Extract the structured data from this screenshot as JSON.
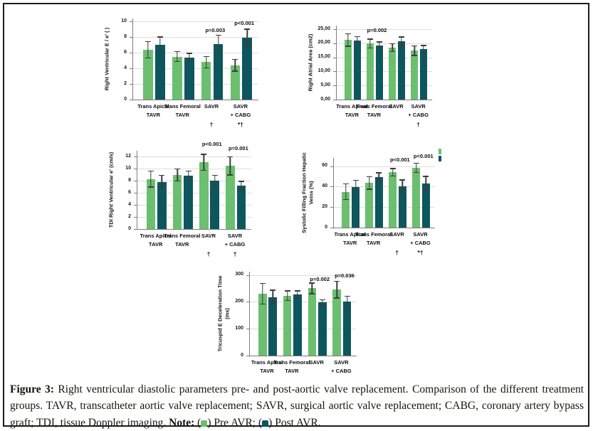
{
  "colors": {
    "pre": "#6bbf6f",
    "post": "#0d565e",
    "error_bar": "#3c3c3c",
    "grid": "#dddddd",
    "axis": "#7d7d7d",
    "frame": "#1c1c1c"
  },
  "caption": {
    "figure_label": "Figure 3:",
    "body": "Right ventricular diastolic parameters pre- and post-aortic valve replacement. Comparison of the different treatment groups. TAVR, transcatheter aortic valve replacement; SAVR, surgical aortic valve replacement; CABG, coronary artery bypass graft; TDI, tissue Doppler imaging.",
    "note_label": "Note:",
    "legend": [
      {
        "label": "Pre AVR;",
        "color": "#6bbf6f"
      },
      {
        "label": "Post AVR.",
        "color": "#0d565e"
      }
    ]
  },
  "chart_data": [
    {
      "id": "right-ventricular-e-over-e-prime",
      "type": "bar",
      "title": "",
      "ylabel_lines": [
        "Right Ventricular E / e′ ( )"
      ],
      "ylabel": "Right Ventricular E / e′ ( )",
      "xlabel": "",
      "ylim": [
        0,
        10
      ],
      "grid": true,
      "yticks": [
        {
          "v": 0,
          "label": "0"
        },
        {
          "v": 2,
          "label": "2"
        },
        {
          "v": 4,
          "label": "4"
        },
        {
          "v": 6,
          "label": "6"
        },
        {
          "v": 8,
          "label": "8"
        },
        {
          "v": 10,
          "label": "10"
        }
      ],
      "categories": [
        {
          "line1": "Trans Apical",
          "line2": "TAVR",
          "note": ""
        },
        {
          "line1": "Trans Femoral",
          "line2": "TAVR",
          "note": ""
        },
        {
          "line1": "SAVR",
          "line2": "",
          "note": "†"
        },
        {
          "line1": "SAVR",
          "line2": "+ CABG",
          "note": "*†"
        }
      ],
      "series": [
        {
          "name": "Pre AVR",
          "values": [
            6.4,
            5.5,
            4.8,
            4.4
          ],
          "errors": [
            1.1,
            0.7,
            0.8,
            0.8
          ]
        },
        {
          "name": "Post AVR",
          "values": [
            7.0,
            5.4,
            7.1,
            7.9
          ],
          "errors": [
            1.1,
            0.6,
            1.2,
            1.2
          ]
        }
      ],
      "annotations": [
        {
          "group": 2,
          "text": "p=0.003",
          "dy": 12
        },
        {
          "group": 3,
          "text": "p<0.001",
          "dy": 2
        }
      ]
    },
    {
      "id": "right-atrial-area",
      "type": "bar",
      "title": "",
      "ylabel_lines": [
        "Right Atrial Area (cm2)"
      ],
      "ylabel": "Right Atrial Area (cm2)",
      "xlabel": "",
      "ylim": [
        0,
        25
      ],
      "grid": true,
      "yticks": [
        {
          "v": 0,
          "label": "0,00"
        },
        {
          "v": 5,
          "label": "5,00"
        },
        {
          "v": 10,
          "label": "10,00"
        },
        {
          "v": 15,
          "label": "15,00"
        },
        {
          "v": 20,
          "label": "20,00"
        },
        {
          "v": 25,
          "label": "25,00"
        }
      ],
      "categories": [
        {
          "line1": "Trans Apical",
          "line2": "TAVR",
          "note": ""
        },
        {
          "line1": "Trans Femoral",
          "line2": "TAVR",
          "note": ""
        },
        {
          "line1": "SAVR",
          "line2": "",
          "note": ""
        },
        {
          "line1": "SAVR",
          "line2": "+ CABG",
          "note": "†"
        }
      ],
      "series": [
        {
          "name": "Pre AVR",
          "values": [
            21.2,
            19.9,
            18.5,
            17.4
          ],
          "errors": [
            2.4,
            1.8,
            1.6,
            1.9
          ]
        },
        {
          "name": "Post AVR",
          "values": [
            21.0,
            19.2,
            20.7,
            17.9
          ],
          "errors": [
            1.6,
            1.5,
            1.7,
            1.5
          ]
        }
      ],
      "annotations": [
        {
          "group": 1,
          "text": "p=0.002",
          "dy": 2
        }
      ]
    },
    {
      "id": "tdi-right-ventricular-e-prime",
      "type": "bar",
      "title": "",
      "ylabel_lines": [
        "TDI Right Ventricular e′ (cm/s)"
      ],
      "ylabel": "TDI Right Ventricular e′ (cm/s)",
      "xlabel": "",
      "ylim": [
        0,
        12
      ],
      "grid": true,
      "yticks": [
        {
          "v": 0,
          "label": "0"
        },
        {
          "v": 2,
          "label": "2"
        },
        {
          "v": 4,
          "label": "4"
        },
        {
          "v": 6,
          "label": "6"
        },
        {
          "v": 8,
          "label": "8"
        },
        {
          "v": 10,
          "label": "10"
        },
        {
          "v": 12,
          "label": "12"
        }
      ],
      "categories": [
        {
          "line1": "Trans Apical",
          "line2": "TAVR",
          "note": ""
        },
        {
          "line1": "Trans Femoral",
          "line2": "TAVR",
          "note": ""
        },
        {
          "line1": "SAVR",
          "line2": "",
          "note": "†"
        },
        {
          "line1": "SAVR",
          "line2": "+ CABG",
          "note": "†"
        }
      ],
      "series": [
        {
          "name": "Pre AVR",
          "values": [
            8.3,
            9.0,
            11.1,
            10.5
          ],
          "errors": [
            1.4,
            1.1,
            1.4,
            1.6
          ]
        },
        {
          "name": "Post AVR",
          "values": [
            7.8,
            8.9,
            8.0,
            7.2
          ],
          "errors": [
            1.2,
            0.8,
            1.0,
            0.8
          ]
        }
      ],
      "annotations": [
        {
          "group": 2,
          "text": "p<0.001",
          "dy": -14
        },
        {
          "group": 3,
          "text": "p=0.001",
          "dy": -8
        }
      ]
    },
    {
      "id": "systolic-filling-fraction-hepatic-veins",
      "type": "bar",
      "title": "",
      "ylabel_lines": [
        "Systolic Filling Fraction Hepatic",
        "Veins (%)"
      ],
      "ylabel": "Systolic Filling Fraction Hepatic Veins (%)",
      "xlabel": "",
      "ylim": [
        0,
        60
      ],
      "grid": true,
      "yticks": [
        {
          "v": 0,
          "label": "0"
        },
        {
          "v": 20,
          "label": "20"
        },
        {
          "v": 40,
          "label": "40"
        },
        {
          "v": 60,
          "label": "60"
        }
      ],
      "categories": [
        {
          "line1": "Trans Apical",
          "line2": "TAVR",
          "note": ""
        },
        {
          "line1": "Trans Femoral",
          "line2": "TAVR",
          "note": ""
        },
        {
          "line1": "SAVR",
          "line2": "",
          "note": "†"
        },
        {
          "line1": "SAVR",
          "line2": "+ CABG",
          "note": "*†"
        }
      ],
      "series": [
        {
          "name": "Pre AVR",
          "values": [
            35.0,
            43.5,
            54.0,
            58.5
          ],
          "errors": [
            8.0,
            6.5,
            4.0,
            5.0
          ]
        },
        {
          "name": "Post AVR",
          "values": [
            39.5,
            49.5,
            40.0,
            43.0
          ],
          "errors": [
            7.0,
            4.5,
            7.0,
            7.5
          ]
        }
      ],
      "annotations": [
        {
          "group": 2,
          "text": "p<0.001",
          "dy": -2
        },
        {
          "group": 3,
          "text": "p<0.001",
          "dy": -7
        }
      ],
      "mini_legend": true
    },
    {
      "id": "tricuspid-e-deceleration-time",
      "type": "bar",
      "title": "",
      "ylabel_lines": [
        "Tricuspid E Deceleration Time",
        "(ms)"
      ],
      "ylabel": "Tricuspid E Deceleration Time (ms)",
      "xlabel": "",
      "ylim": [
        0,
        300
      ],
      "grid": true,
      "yticks": [
        {
          "v": 0,
          "label": "0"
        },
        {
          "v": 100,
          "label": "100"
        },
        {
          "v": 200,
          "label": "200"
        },
        {
          "v": 300,
          "label": "300"
        }
      ],
      "categories": [
        {
          "line1": "Trans Apical",
          "line2": "TAVR",
          "note": ""
        },
        {
          "line1": "Trans Femoral",
          "line2": "TAVR",
          "note": ""
        },
        {
          "line1": "SAVR",
          "line2": "",
          "note": ""
        },
        {
          "line1": "SAVR",
          "line2": "+ CABG",
          "note": ""
        }
      ],
      "series": [
        {
          "name": "Pre AVR",
          "values": [
            230,
            223,
            250,
            245
          ],
          "errors": [
            40,
            20,
            22,
            33
          ]
        },
        {
          "name": "Post AVR",
          "values": [
            218,
            227,
            198,
            202
          ],
          "errors": [
            27,
            15,
            12,
            20
          ]
        }
      ],
      "annotations": [
        {
          "group": 2,
          "text": "p=0.002",
          "dy": 6
        },
        {
          "group": 3,
          "text": "p=0.036",
          "dy": 1
        }
      ]
    }
  ]
}
